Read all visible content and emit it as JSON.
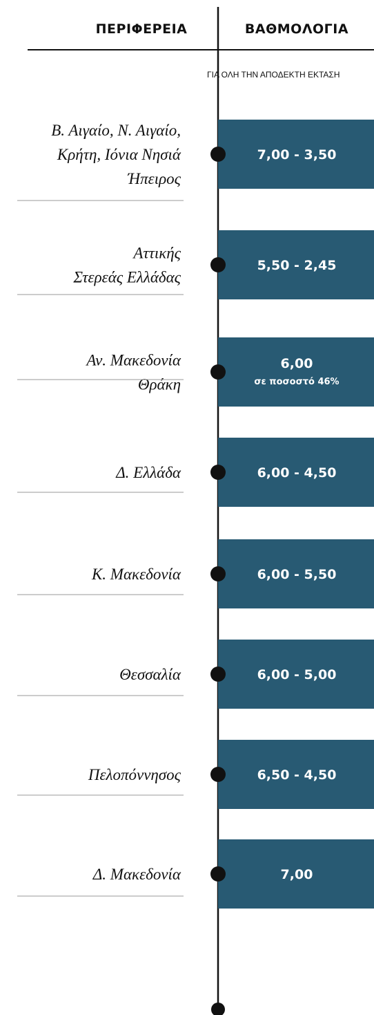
{
  "header": {
    "left": "ΠΕΡΙΦΕΡΕΙΑ",
    "right": "ΒΑΘΜΟΛΟΓΙΑ"
  },
  "note": "ΓΙΑ ΟΛΗ ΤΗΝ ΑΠΟΔΕΚΤΗ ΕΚΤΑΣΗ",
  "rows": [
    {
      "region": [
        "Β. Αιγαίο, Ν. Αιγαίο,",
        "Κρήτη, Ιόνια Νησιά",
        "Ήπειρος"
      ],
      "score": "7,00 - 3,50"
    },
    {
      "region": [
        "Αττικής",
        "Στερεάς Ελλάδας"
      ],
      "score": "5,50 - 2,45"
    },
    {
      "region": [
        "Αν. Μακεδονία",
        "Θράκη"
      ],
      "score": "6,00",
      "detail": "σε ποσοστό 46%"
    },
    {
      "region": [
        "Δ. Ελλάδα"
      ],
      "score": "6,00 - 4,50"
    },
    {
      "region": [
        "Κ. Μακεδονία"
      ],
      "score": "6,00 - 5,50"
    },
    {
      "region": [
        "Θεσσαλία"
      ],
      "score": "6,00 - 5,00"
    },
    {
      "region": [
        "Πελοπόννησος"
      ],
      "score": "6,50 - 4,50"
    },
    {
      "region": [
        "Δ. Μακεδονία"
      ],
      "score": "7,00"
    }
  ]
}
